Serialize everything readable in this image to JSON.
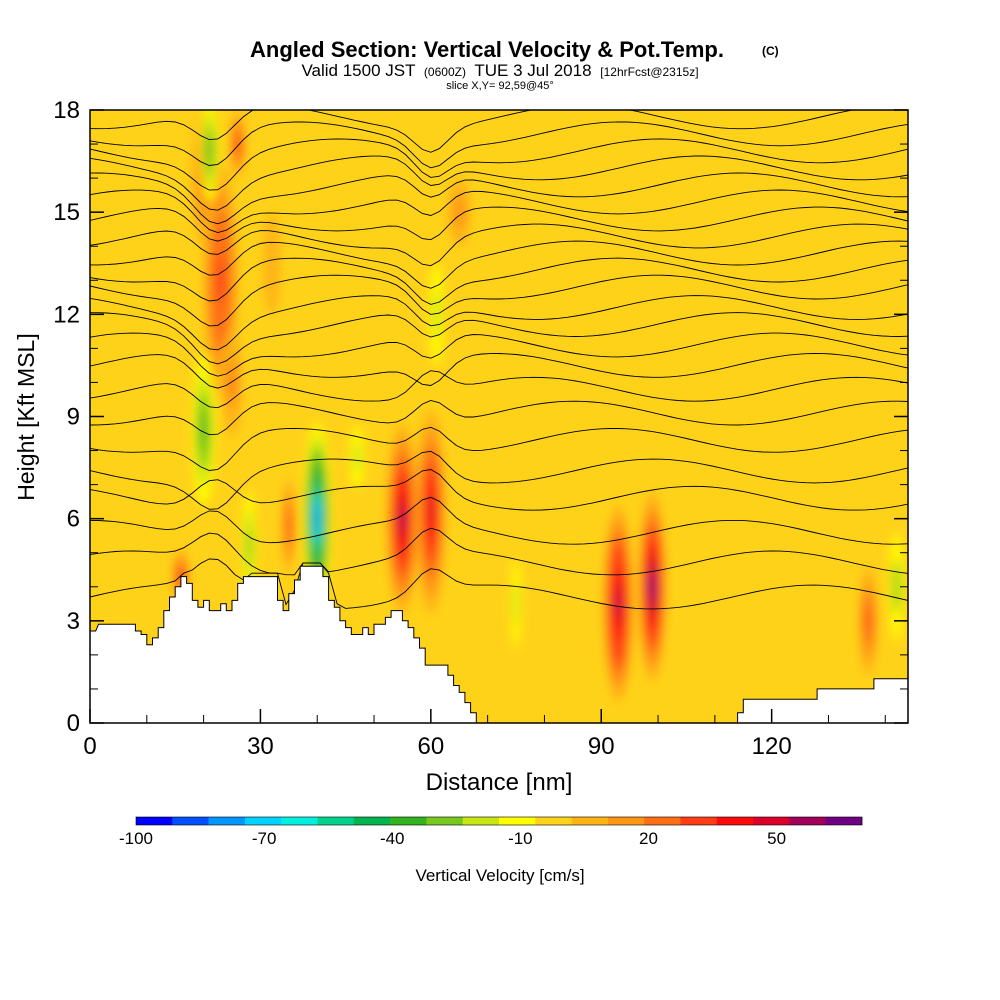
{
  "chart_data": {
    "type": "heatmap",
    "title": "Angled Section: Vertical Velocity & Pot.Temp.",
    "title_mark": "(C)",
    "subtitle_parts": [
      "Valid 1500 JST",
      "(0600Z)",
      "TUE 3 Jul 2018",
      "[12hrFcst@2315z]"
    ],
    "slice_label": "slice X,Y= 92,59@45°",
    "xlabel": "Distance [nm]",
    "ylabel": "Height [Kft MSL]",
    "xlim": [
      0,
      144
    ],
    "ylim": [
      0,
      18
    ],
    "x_ticks": [
      0,
      30,
      60,
      90,
      120
    ],
    "x_minor_ticks": [
      10,
      20,
      40,
      50,
      70,
      80,
      100,
      110,
      130,
      140
    ],
    "y_ticks": [
      0,
      3,
      6,
      9,
      12,
      15,
      18
    ],
    "y_minor_ticks": [
      1,
      2,
      4,
      5,
      7,
      8,
      10,
      11,
      13,
      14,
      16,
      17
    ],
    "background_color": "#ffd21a",
    "colorbar": {
      "label": "Vertical Velocity [cm/s]",
      "tick_labels": [
        "-100",
        "-70",
        "-40",
        "-10",
        "20",
        "50"
      ],
      "tick_values": [
        -100,
        -70,
        -40,
        -10,
        20,
        50
      ],
      "range": [
        -100,
        70
      ],
      "colors": [
        "#0000ff",
        "#0050ff",
        "#0096ff",
        "#00d2ff",
        "#00f0e0",
        "#00d28c",
        "#00b450",
        "#32b41e",
        "#78c81e",
        "#c8e614",
        "#ffff00",
        "#ffd21a",
        "#ffb414",
        "#ff9614",
        "#ff6e14",
        "#ff3c14",
        "#ff0a0a",
        "#dc0028",
        "#a0005a",
        "#6e0082"
      ]
    },
    "terrain": [
      [
        0,
        2.7
      ],
      [
        1,
        2.7
      ],
      [
        1.5,
        2.9
      ],
      [
        8,
        2.9
      ],
      [
        8,
        2.7
      ],
      [
        9,
        2.7
      ],
      [
        9,
        2.6
      ],
      [
        10,
        2.6
      ],
      [
        10,
        2.3
      ],
      [
        11,
        2.3
      ],
      [
        11,
        2.5
      ],
      [
        12,
        2.5
      ],
      [
        12,
        2.8
      ],
      [
        13,
        2.8
      ],
      [
        13,
        3.3
      ],
      [
        14,
        3.3
      ],
      [
        14,
        3.7
      ],
      [
        15,
        3.7
      ],
      [
        15,
        4.0
      ],
      [
        16,
        4.0
      ],
      [
        16,
        4.3
      ],
      [
        17,
        4.3
      ],
      [
        17,
        4.1
      ],
      [
        18,
        4.1
      ],
      [
        18,
        3.6
      ],
      [
        19,
        3.6
      ],
      [
        19,
        3.4
      ],
      [
        20,
        3.4
      ],
      [
        20,
        3.6
      ],
      [
        21,
        3.6
      ],
      [
        21,
        3.3
      ],
      [
        23,
        3.3
      ],
      [
        23,
        3.5
      ],
      [
        24,
        3.5
      ],
      [
        24,
        3.3
      ],
      [
        25,
        3.3
      ],
      [
        25,
        3.6
      ],
      [
        26,
        3.6
      ],
      [
        26,
        4.1
      ],
      [
        27,
        4.1
      ],
      [
        27,
        4.3
      ],
      [
        33,
        4.3
      ],
      [
        33,
        3.6
      ],
      [
        34,
        3.6
      ],
      [
        34,
        3.3
      ],
      [
        35,
        3.3
      ],
      [
        35,
        3.8
      ],
      [
        36,
        3.8
      ],
      [
        36,
        4.2
      ],
      [
        37,
        4.2
      ],
      [
        37,
        4.6
      ],
      [
        41,
        4.6
      ],
      [
        41,
        4.3
      ],
      [
        42,
        4.3
      ],
      [
        42,
        3.6
      ],
      [
        43,
        3.6
      ],
      [
        43,
        3.4
      ],
      [
        44,
        3.4
      ],
      [
        44,
        3.0
      ],
      [
        45,
        3.0
      ],
      [
        45,
        2.8
      ],
      [
        46,
        2.8
      ],
      [
        46,
        2.6
      ],
      [
        48,
        2.6
      ],
      [
        48,
        2.8
      ],
      [
        49,
        2.8
      ],
      [
        49,
        2.6
      ],
      [
        50,
        2.6
      ],
      [
        50,
        2.9
      ],
      [
        52,
        2.9
      ],
      [
        52,
        3.1
      ],
      [
        53,
        3.1
      ],
      [
        53,
        3.3
      ],
      [
        55,
        3.3
      ],
      [
        55,
        3.0
      ],
      [
        56,
        3.0
      ],
      [
        56,
        2.8
      ],
      [
        57,
        2.8
      ],
      [
        57,
        2.5
      ],
      [
        58,
        2.5
      ],
      [
        58,
        2.2
      ],
      [
        59,
        2.2
      ],
      [
        59,
        1.7
      ],
      [
        63,
        1.7
      ],
      [
        63,
        1.4
      ],
      [
        64,
        1.4
      ],
      [
        64,
        1.1
      ],
      [
        65,
        1.1
      ],
      [
        65,
        0.9
      ],
      [
        66,
        0.9
      ],
      [
        66,
        0.6
      ],
      [
        67,
        0.6
      ],
      [
        67,
        0.3
      ],
      [
        68,
        0.3
      ],
      [
        68,
        0.0
      ],
      [
        114,
        0.0
      ],
      [
        114,
        0.3
      ],
      [
        115,
        0.3
      ],
      [
        115,
        0.7
      ],
      [
        128,
        0.7
      ],
      [
        128,
        1.0
      ],
      [
        138,
        1.0
      ],
      [
        138,
        1.3
      ],
      [
        144,
        1.3
      ]
    ],
    "updraft_cores": [
      {
        "x": 23,
        "y": 13.0,
        "rx": 3.0,
        "ry": 3.4,
        "value": 35
      },
      {
        "x": 20,
        "y": 16.0,
        "rx": 2.0,
        "ry": 2.0,
        "value": 20
      },
      {
        "x": 26,
        "y": 17.0,
        "rx": 1.2,
        "ry": 1.0,
        "value": 40
      },
      {
        "x": 25,
        "y": 10.0,
        "rx": 1.8,
        "ry": 1.6,
        "value": 25
      },
      {
        "x": 16,
        "y": 4.3,
        "rx": 1.4,
        "ry": 0.8,
        "value": 40
      },
      {
        "x": 35,
        "y": 5.8,
        "rx": 1.2,
        "ry": 1.4,
        "value": 30
      },
      {
        "x": 55,
        "y": 6.0,
        "rx": 2.8,
        "ry": 2.8,
        "value": 55
      },
      {
        "x": 60,
        "y": 6.2,
        "rx": 2.6,
        "ry": 3.0,
        "value": 45
      },
      {
        "x": 93,
        "y": 3.5,
        "rx": 2.6,
        "ry": 2.9,
        "value": 60
      },
      {
        "x": 99,
        "y": 4.0,
        "rx": 2.4,
        "ry": 2.8,
        "value": 65
      },
      {
        "x": 137,
        "y": 3.0,
        "rx": 1.6,
        "ry": 1.6,
        "value": 30
      },
      {
        "x": 65,
        "y": 15.0,
        "rx": 2.0,
        "ry": 1.0,
        "value": 12
      },
      {
        "x": 32,
        "y": 13.5,
        "rx": 1.5,
        "ry": 1.5,
        "value": 10
      }
    ],
    "downdraft_cores": [
      {
        "x": 40,
        "y": 6.0,
        "rx": 2.4,
        "ry": 2.8,
        "value": -75
      },
      {
        "x": 20,
        "y": 8.6,
        "rx": 2.0,
        "ry": 2.2,
        "value": -40
      },
      {
        "x": 21,
        "y": 16.8,
        "rx": 1.5,
        "ry": 1.5,
        "value": -35
      },
      {
        "x": 28,
        "y": 5.2,
        "rx": 1.2,
        "ry": 1.6,
        "value": -30
      },
      {
        "x": 61,
        "y": 12.0,
        "rx": 1.2,
        "ry": 1.5,
        "value": -20
      },
      {
        "x": 75,
        "y": 3.5,
        "rx": 0.8,
        "ry": 1.3,
        "value": -20
      },
      {
        "x": 142,
        "y": 4.0,
        "rx": 1.2,
        "ry": 1.6,
        "value": -25
      },
      {
        "x": 47,
        "y": 7.8,
        "rx": 1.2,
        "ry": 0.9,
        "value": -20
      }
    ],
    "isentrope_heights": [
      3.7,
      4.7,
      5.6,
      6.6,
      7.4,
      8.3,
      9.1,
      9.8,
      10.5,
      11.1,
      11.7,
      12.2,
      12.8,
      13.3,
      13.8,
      14.3,
      14.8,
      15.3,
      15.8,
      16.3,
      16.8,
      17.3,
      17.8
    ]
  }
}
